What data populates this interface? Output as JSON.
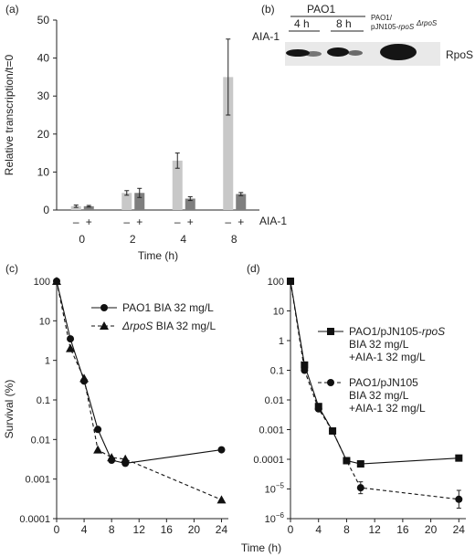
{
  "panels": {
    "a": "(a)",
    "b": "(b)",
    "c": "(c)",
    "d": "(d)"
  },
  "colors": {
    "minus_bar": "#c8c8c8",
    "plus_bar": "#7f7f7f",
    "line": "#111111",
    "blot_bg": "#e9e9e9",
    "band": "#151515"
  },
  "blot": {
    "strain": "PAO1",
    "time_labels": [
      "4 h",
      "8 h"
    ],
    "compound": "AIA-1",
    "lane_labels": [
      "PAO1/",
      "pJN105-",
      "rpoS",
      "ΔrpoS"
    ],
    "protein": "RpoS"
  },
  "shared_xlabel": "Time (h)",
  "chart_data": [
    {
      "panel": "a",
      "type": "bar",
      "ylabel": "Relative transcription/t=0",
      "xlabel": "Time (h)",
      "ylim": [
        0,
        50
      ],
      "yticks": [
        "0",
        "10",
        "20",
        "30",
        "40",
        "50"
      ],
      "categories": [
        "0",
        "2",
        "4",
        "8"
      ],
      "group_markers": [
        "–",
        "+"
      ],
      "marker_row_label": "AIA-1",
      "series": [
        {
          "name": "–",
          "values": [
            1.0,
            4.5,
            13.0,
            35.0
          ],
          "errors": [
            0.3,
            0.6,
            2.0,
            10.0
          ]
        },
        {
          "name": "+",
          "values": [
            1.0,
            4.5,
            3.0,
            4.2
          ],
          "errors": [
            0.2,
            1.2,
            0.5,
            0.4
          ]
        }
      ]
    },
    {
      "panel": "c",
      "type": "line",
      "scale": "log",
      "ylabel": "Survival (%)",
      "xlim": [
        0,
        25
      ],
      "xticks": [
        "0",
        "4",
        "8",
        "12",
        "16",
        "20",
        "24"
      ],
      "ylim": [
        0.0001,
        100
      ],
      "yticks": [
        "0.0001",
        "0.001",
        "0.01",
        "0.1",
        "1",
        "10",
        "100"
      ],
      "series": [
        {
          "name": "PAO1",
          "legend": [
            "PAO1",
            "BIA",
            "32 mg/L"
          ],
          "marker": "circle",
          "dash": false,
          "x": [
            0,
            2,
            4,
            6,
            8,
            10,
            24
          ],
          "y": [
            100,
            3.5,
            0.3,
            0.018,
            0.003,
            0.0025,
            0.0055
          ]
        },
        {
          "name": "ΔrpoS",
          "legend": [
            "ΔrpoS",
            "BIA",
            "32 mg/L"
          ],
          "marker": "triangle",
          "dash": true,
          "x": [
            0,
            2,
            4,
            6,
            8,
            10,
            24
          ],
          "y": [
            100,
            2.0,
            0.35,
            0.0055,
            0.0035,
            0.0032,
            0.0003
          ]
        }
      ]
    },
    {
      "panel": "d",
      "type": "line",
      "scale": "log",
      "xlim": [
        0,
        25
      ],
      "xticks": [
        "0",
        "4",
        "8",
        "12",
        "16",
        "20",
        "24"
      ],
      "ylim": [
        1e-06,
        100
      ],
      "yticks": [
        "100",
        "10",
        "1",
        "0.1",
        "0.01",
        "0.001",
        "0.0001"
      ],
      "ytick_sup": [
        [
          "10",
          "−5"
        ],
        [
          "10",
          "−6"
        ]
      ],
      "series": [
        {
          "name": "PAO1/pJN105-rpoS",
          "legend": [
            "PAO1/pJN105-rpoS",
            "BIA  32  mg/L",
            "+AIA-1  32  mg/L"
          ],
          "marker": "square",
          "dash": false,
          "x": [
            0,
            2,
            4,
            6,
            8,
            10,
            24
          ],
          "y": [
            100,
            0.15,
            0.006,
            0.0009,
            9e-05,
            7e-05,
            0.00011
          ]
        },
        {
          "name": "PAO1/pJN105",
          "legend": [
            "PAO1/pJN105",
            "BIA  32  mg/L",
            "+AIA-1  32  mg/L"
          ],
          "marker": "circle",
          "dash": true,
          "x": [
            0,
            2,
            4,
            6,
            8,
            10,
            24
          ],
          "y": [
            100,
            0.1,
            0.005,
            0.0009,
            9e-05,
            1.1e-05,
            4.5e-06
          ],
          "errors_log": [
            0,
            0,
            0,
            0,
            0,
            0.2,
            0.3
          ]
        }
      ]
    }
  ]
}
